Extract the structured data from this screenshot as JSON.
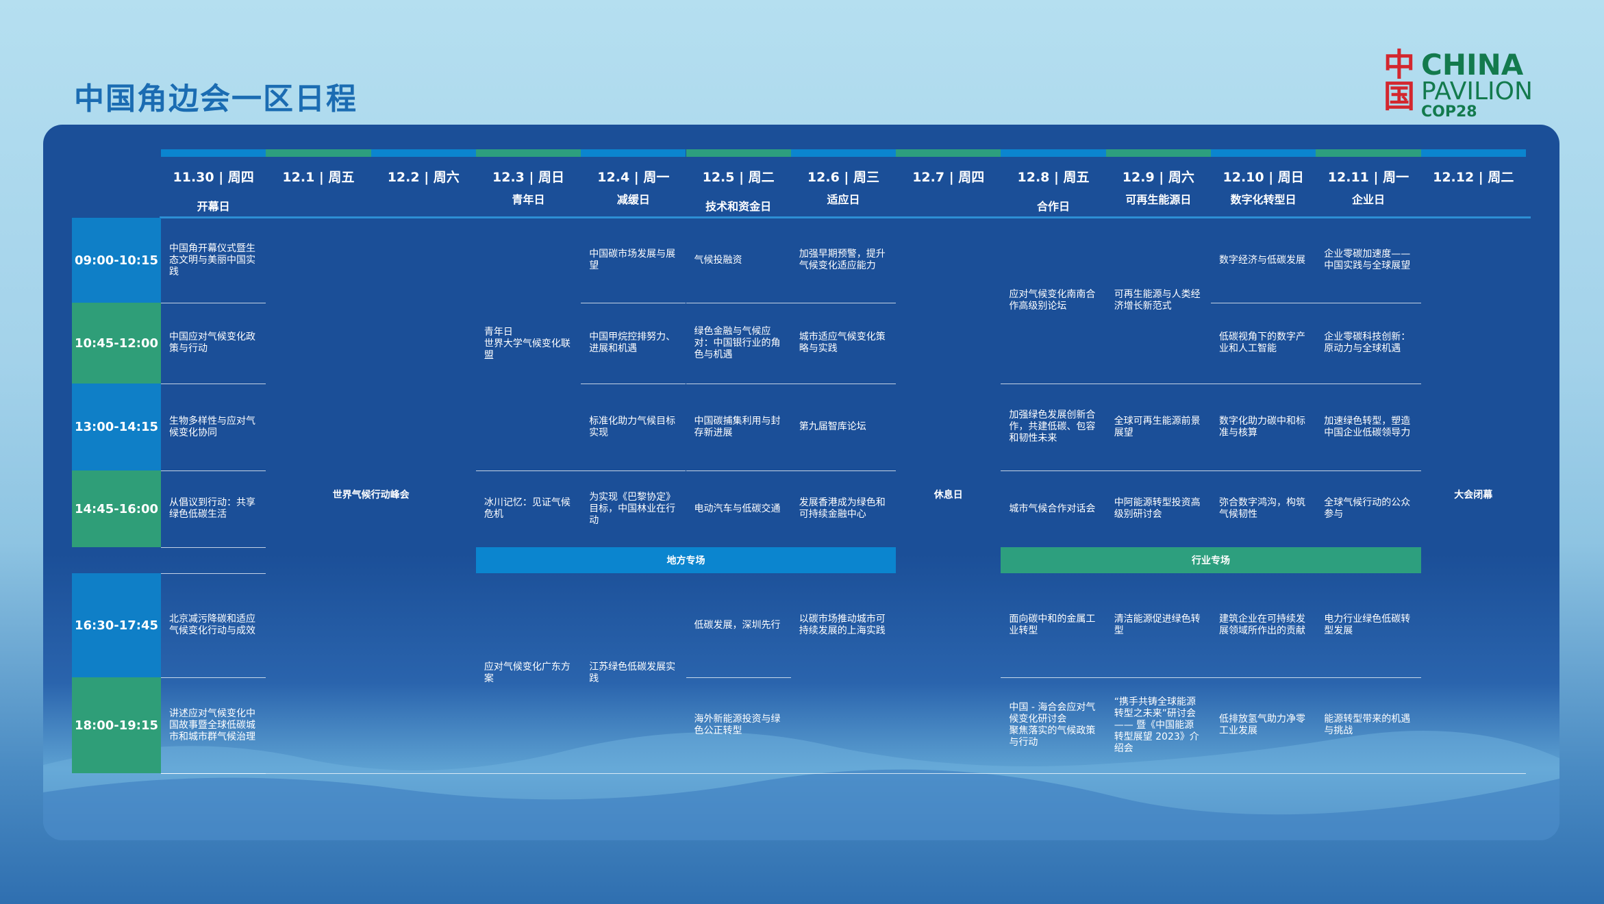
{
  "title": "中国角边会一区日程",
  "logo": {
    "cn": "中国",
    "line1": "CHINA",
    "line2": "PAVILION",
    "line3": "COP28"
  },
  "columns": [
    {
      "date": "11.30 | 周四",
      "theme": "开幕日"
    },
    {
      "date": "12.1 | 周五",
      "theme": ""
    },
    {
      "date": "12.2 | 周六",
      "theme": ""
    },
    {
      "date": "12.3 | 周日",
      "theme": "青年日"
    },
    {
      "date": "12.4 | 周一",
      "theme": "减缓日"
    },
    {
      "date": "12.5 | 周二",
      "theme": "技术和资金日"
    },
    {
      "date": "12.6 | 周三",
      "theme": "适应日"
    },
    {
      "date": "12.7 | 周四",
      "theme": ""
    },
    {
      "date": "12.8 | 周五",
      "theme": "合作日"
    },
    {
      "date": "12.9 | 周六",
      "theme": "可再生能源日"
    },
    {
      "date": "12.10 | 周日",
      "theme": "数字化转型日"
    },
    {
      "date": "12.11 | 周一",
      "theme": "企业日"
    },
    {
      "date": "12.12 | 周二",
      "theme": ""
    }
  ],
  "times": [
    "09:00-10:15",
    "10:45-12:00",
    "13:00-14:15",
    "14:45-16:00",
    "16:30-17:45",
    "18:00-19:15"
  ],
  "merged": {
    "summit": "世界气候行动峰会",
    "rest": "休息日",
    "closing": "大会闭幕",
    "local_band": "地方专场",
    "industry_band": "行业专场"
  },
  "sessions": {
    "c0": [
      "中国角开幕仪式暨生态文明与美丽中国实践",
      "中国应对气候变化政策与行动",
      "生物多样性与应对气候变化协同",
      "从倡议到行动：共享绿色低碳生活",
      "北京减污降碳和适应气候变化行动与成效",
      "讲述应对气候变化中国故事暨全球低碳城市和城市群气候治理"
    ],
    "c3": [
      "青年日\n世界大学气候变化联盟",
      "冰川记忆：见证气候危机",
      "应对气候变化广东方案"
    ],
    "c4": [
      "中国碳市场发展与展望",
      "中国甲烷控排努力、进展和机遇",
      "标准化助力气候目标实现",
      "为实现《巴黎协定》目标，中国林业在行动",
      "江苏绿色低碳发展实践"
    ],
    "c5": [
      "气候投融资",
      "绿色金融与气候应对：中国银行业的角色与机遇",
      "中国碳捕集利用与封存新进展",
      "电动汽车与低碳交通",
      "低碳发展，深圳先行",
      "海外新能源投资与绿色公正转型"
    ],
    "c6": [
      "加强早期预警，提升气候变化适应能力",
      "城市适应气候变化策略与实践",
      "第九届智库论坛",
      "发展香港成为绿色和可持续金融中心",
      "以碳市场推动城市可持续发展的上海实践"
    ],
    "c8": [
      "应对气候变化南南合作高级别论坛",
      "加强绿色发展创新合作，共建低碳、包容和韧性未来",
      "城市气候合作对话会",
      "面向碳中和的金属工业转型",
      "中国 - 海合会应对气候变化研讨会\n聚焦落实的气候政策与行动"
    ],
    "c9": [
      "可再生能源与人类经济增长新范式",
      "全球可再生能源前景展望",
      "中阿能源转型投资高级别研讨会",
      "清洁能源促进绿色转型",
      "“携手共铸全球能源转型之未来”研讨会—— 暨《中国能源转型展望 2023》介绍会"
    ],
    "c10": [
      "数字经济与低碳发展",
      "低碳视角下的数字产业和人工智能",
      "数字化助力碳中和标准与核算",
      "弥合数字鸿沟，构筑气候韧性",
      "建筑企业在可持续发展领域所作出的贡献",
      "低排放氢气助力净零工业发展"
    ],
    "c11": [
      "企业零碳加速度——中国实践与全球展望",
      "企业零碳科技创新：原动力与全球机遇",
      "加速绿色转型，塑造中国企业低碳领导力",
      "全球气候行动的公众参与",
      "电力行业绿色低碳转型发展",
      "能源转型带来的机遇与挑战"
    ]
  },
  "colors": {
    "panel": "#1b4f98",
    "time_blue": "#0f7fc7",
    "time_green": "#2f9e78",
    "band_blue": "#0b85cf",
    "band_green": "#2d9f7e",
    "title": "#1b6cb2",
    "logo_red": "#d3272e",
    "logo_green": "#137a4d"
  }
}
